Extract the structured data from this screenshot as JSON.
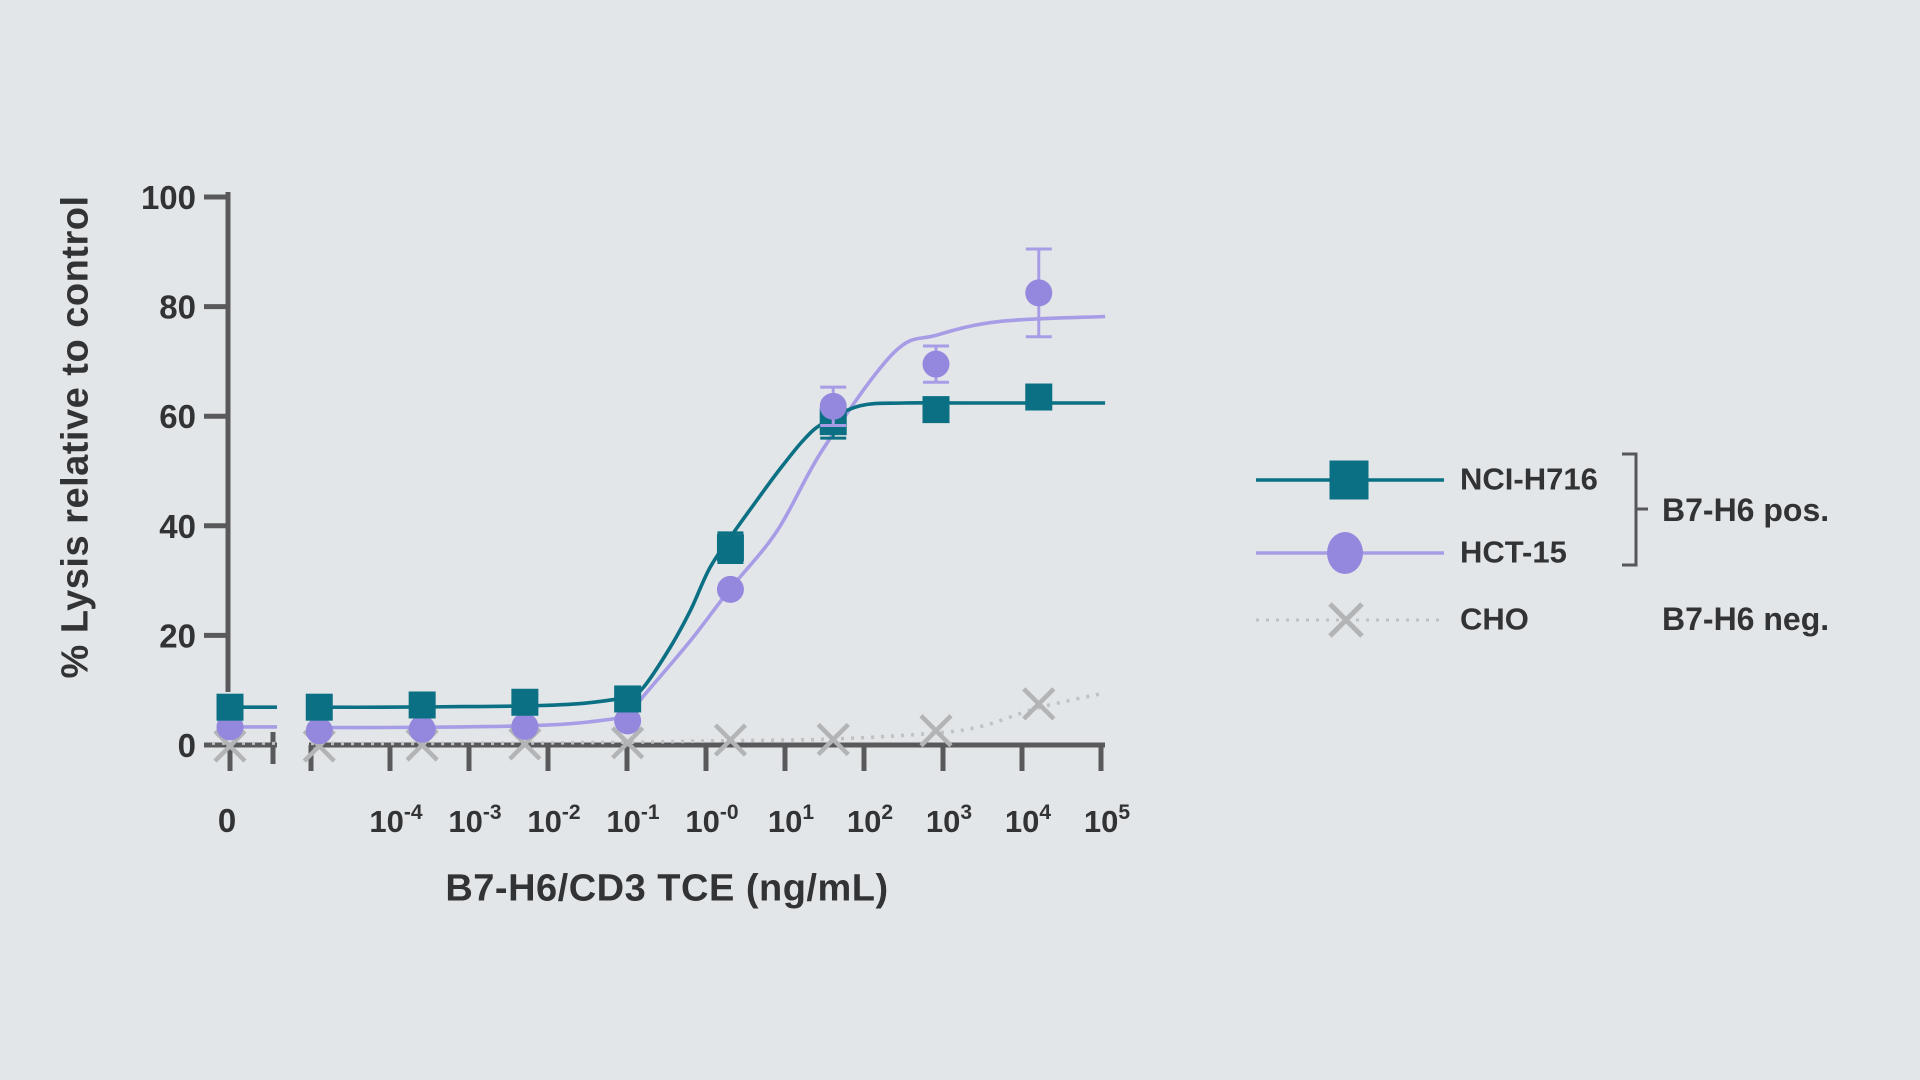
{
  "figure": {
    "background": "#E3E6E8",
    "text_color": "#323335",
    "axis_color": "#59595B"
  },
  "chart_data": {
    "type": "line",
    "title": "",
    "xlabel": "B7-H6/CD3 TCE (ng/mL)",
    "ylabel": "% Lysis relative to control",
    "x_scale": "log10 with zero break",
    "ylim": [
      0,
      100
    ],
    "y_ticks": [
      0,
      20,
      40,
      60,
      80,
      100
    ],
    "zero_tick_label": "0",
    "x_tick_sups": [
      "-4",
      "-3",
      "-2",
      "-1",
      "-0",
      "1",
      "2",
      "3",
      "4",
      "5"
    ],
    "x_unlabeled_minor_tick_exponent": -5,
    "grid": false,
    "legend_position": "right",
    "doses_ng_ml": [
      0,
      1.56e-05,
      0.000313,
      0.00625,
      0.125,
      2.5,
      50,
      1000,
      20000
    ],
    "series": [
      {
        "name": "CHO",
        "group": "B7-H6 neg.",
        "marker": "x",
        "marker_color": "#B2B4B6",
        "line_color": "#BFC1C3",
        "line_style": "dotted",
        "values": [
          -0.2,
          -0.2,
          0,
          0.2,
          0.4,
          0.9,
          1.0,
          2.6,
          7.5
        ],
        "errors": [
          0,
          0,
          0,
          0,
          0,
          0,
          0,
          0,
          0
        ],
        "curve": [
          [
            -4.91,
            0.3
          ],
          [
            -3,
            0.3
          ],
          [
            -1,
            0.5
          ],
          [
            0.4,
            0.8
          ],
          [
            1.7,
            1.1
          ],
          [
            3.01,
            2.2
          ],
          [
            3.6,
            3.5
          ],
          [
            4.3,
            6.8
          ],
          [
            5.14,
            9.5
          ]
        ]
      },
      {
        "name": "HCT-15",
        "group": "B7-H6 pos.",
        "marker": "circle",
        "marker_color": "#9488DE",
        "line_color": "#A79DE6",
        "line_style": "solid",
        "values": [
          3.3,
          2.6,
          2.9,
          3.4,
          4.4,
          28.4,
          61.8,
          69.5,
          82.5
        ],
        "errors": [
          0,
          0,
          0,
          0,
          0,
          0,
          3.5,
          3.3,
          8
        ],
        "curve": [
          [
            -4.91,
            3.2
          ],
          [
            -4,
            3.2
          ],
          [
            -3,
            3.3
          ],
          [
            -2,
            3.6
          ],
          [
            -1.4,
            4.2
          ],
          [
            -0.9,
            5.5
          ],
          [
            -0.71,
            8.8
          ],
          [
            -0.11,
            19.0
          ],
          [
            0.39,
            28.4
          ],
          [
            0.99,
            39.1
          ],
          [
            1.57,
            54.0
          ],
          [
            2.46,
            71.5
          ],
          [
            3.01,
            74.8
          ],
          [
            3.81,
            77.3
          ],
          [
            5.14,
            78.2
          ]
        ]
      },
      {
        "name": "NCI-H716",
        "group": "B7-H6 pos.",
        "marker": "square",
        "marker_color": "#0B7083",
        "line_color": "#0B7083",
        "line_style": "solid",
        "values": [
          6.9,
          6.9,
          7.3,
          7.8,
          8.4,
          36.0,
          59.0,
          61.2,
          63.5
        ],
        "errors": [
          0,
          0,
          0,
          0,
          0,
          2.7,
          3.0,
          0,
          0
        ],
        "curve": [
          [
            -4.91,
            6.9
          ],
          [
            -4,
            6.9
          ],
          [
            -3,
            7.0
          ],
          [
            -2,
            7.2
          ],
          [
            -1.4,
            7.7
          ],
          [
            -0.9,
            8.8
          ],
          [
            -0.71,
            10.4
          ],
          [
            -0.37,
            17.7
          ],
          [
            -0.11,
            24.5
          ],
          [
            0.14,
            32.4
          ],
          [
            0.43,
            38.6
          ],
          [
            0.73,
            44.6
          ],
          [
            0.99,
            49.7
          ],
          [
            1.32,
            55.6
          ],
          [
            1.57,
            58.7
          ],
          [
            2.04,
            61.9
          ],
          [
            2.6,
            62.4
          ],
          [
            3.5,
            62.4
          ],
          [
            5.14,
            62.4
          ]
        ]
      }
    ]
  },
  "legend": {
    "items": [
      {
        "label": "NCI-H716"
      },
      {
        "label": "HCT-15"
      },
      {
        "label": "CHO"
      }
    ],
    "groups": [
      {
        "label": "B7-H6 pos."
      },
      {
        "label": "B7-H6 neg."
      }
    ],
    "bracket_color": "#55575A"
  }
}
